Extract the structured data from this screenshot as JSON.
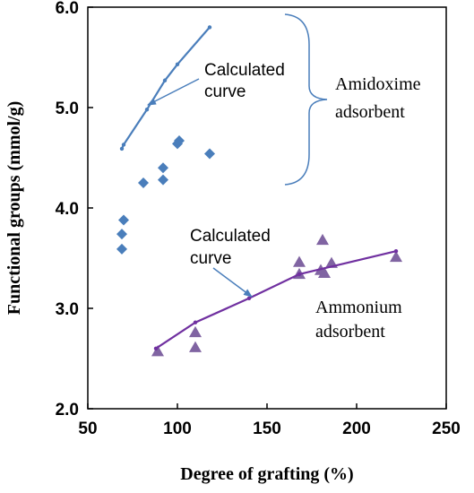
{
  "chart_data": {
    "type": "scatter",
    "xlabel": "Degree of grafting (%)",
    "ylabel": "Functional groups (mmol/g)",
    "xlim": [
      50,
      250
    ],
    "ylim": [
      2.0,
      6.0
    ],
    "xticks": [
      "50",
      "100",
      "150",
      "200",
      "250"
    ],
    "yticks": [
      "2.0",
      "3.0",
      "4.0",
      "5.0",
      "6.0"
    ],
    "grid": false,
    "series": [
      {
        "name": "Amidoxime adsorbent",
        "kind": "points",
        "marker": "diamond",
        "color": "#4A7EBB",
        "points": [
          [
            69,
            3.59
          ],
          [
            69,
            3.74
          ],
          [
            70,
            3.88
          ],
          [
            81,
            4.25
          ],
          [
            92,
            4.28
          ],
          [
            92,
            4.4
          ],
          [
            100,
            4.64
          ],
          [
            101,
            4.67
          ],
          [
            118,
            4.54
          ]
        ]
      },
      {
        "name": "Amidoxime adsorbent calculated curve",
        "kind": "curve",
        "color": "#4A7EBB",
        "points": [
          [
            69,
            4.59
          ],
          [
            70,
            4.63
          ],
          [
            83,
            4.98
          ],
          [
            93,
            5.27
          ],
          [
            100,
            5.43
          ],
          [
            118,
            5.8
          ]
        ]
      },
      {
        "name": "Ammonium adsorbent",
        "kind": "points",
        "marker": "triangle",
        "color": "#8064A2",
        "points": [
          [
            89,
            2.57
          ],
          [
            110,
            2.61
          ],
          [
            110,
            2.76
          ],
          [
            168,
            3.34
          ],
          [
            168,
            3.46
          ],
          [
            180,
            3.38
          ],
          [
            181,
            3.68
          ],
          [
            182,
            3.35
          ],
          [
            186,
            3.45
          ],
          [
            222,
            3.51
          ]
        ]
      },
      {
        "name": "Ammonium adsorbent calculated curve",
        "kind": "curve",
        "color": "#7030A0",
        "points": [
          [
            88,
            2.6
          ],
          [
            110,
            2.86
          ],
          [
            140,
            3.1
          ],
          [
            168,
            3.34
          ],
          [
            222,
            3.57
          ]
        ]
      }
    ],
    "annotations": {
      "calc_curve_1_line1": "Calculated",
      "calc_curve_1_line2": "curve",
      "amidoxime_line1": "Amidoxime",
      "amidoxime_line2": "adsorbent",
      "calc_curve_2_line1": "Calculated",
      "calc_curve_2_line2": "curve",
      "ammonium_line1": "Ammonium",
      "ammonium_line2": "adsorbent"
    }
  }
}
